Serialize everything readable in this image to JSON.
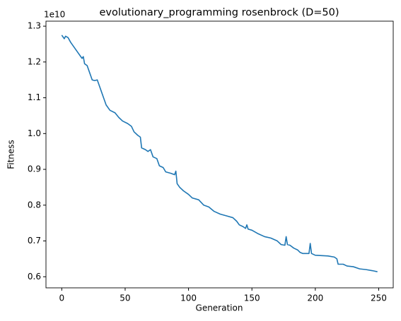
{
  "chart_data": {
    "type": "line",
    "title": "evolutionary_programming rosenbrock  (D=50)",
    "xlabel": "Generation",
    "ylabel": "Fitness",
    "y_offset_label": "1e10",
    "x": [
      0,
      2,
      3,
      5,
      7,
      10,
      13,
      15,
      16,
      17,
      18,
      20,
      22,
      24,
      26,
      28,
      29,
      31,
      33,
      35,
      38,
      42,
      45,
      48,
      52,
      55,
      57,
      60,
      62,
      63,
      66,
      68,
      70,
      72,
      75,
      77,
      80,
      82,
      86,
      89,
      90,
      91,
      93,
      96,
      100,
      103,
      108,
      112,
      116,
      120,
      125,
      130,
      135,
      138,
      140,
      143,
      145,
      146,
      147,
      150,
      155,
      160,
      165,
      170,
      173,
      176,
      177,
      178,
      180,
      183,
      186,
      188,
      190,
      195,
      196,
      197,
      200,
      210,
      215,
      217,
      218,
      222,
      225,
      230,
      235,
      240,
      245,
      249
    ],
    "series": [
      {
        "name": "Fitness",
        "color": "#1f77b4",
        "values": [
          1.275,
          1.265,
          1.272,
          1.268,
          1.255,
          1.24,
          1.225,
          1.215,
          1.21,
          1.215,
          1.195,
          1.19,
          1.17,
          1.15,
          1.148,
          1.15,
          1.14,
          1.12,
          1.1,
          1.08,
          1.065,
          1.058,
          1.045,
          1.035,
          1.028,
          1.02,
          1.005,
          0.995,
          0.99,
          0.96,
          0.955,
          0.95,
          0.955,
          0.935,
          0.93,
          0.91,
          0.905,
          0.893,
          0.889,
          0.885,
          0.895,
          0.86,
          0.85,
          0.84,
          0.83,
          0.82,
          0.815,
          0.8,
          0.795,
          0.783,
          0.775,
          0.77,
          0.765,
          0.755,
          0.745,
          0.74,
          0.735,
          0.745,
          0.733,
          0.73,
          0.72,
          0.712,
          0.708,
          0.7,
          0.69,
          0.688,
          0.712,
          0.69,
          0.688,
          0.68,
          0.675,
          0.668,
          0.665,
          0.665,
          0.693,
          0.665,
          0.66,
          0.658,
          0.655,
          0.65,
          0.635,
          0.635,
          0.63,
          0.628,
          0.622,
          0.62,
          0.617,
          0.614
        ]
      }
    ],
    "xlim": [
      -12.45,
      261.45
    ],
    "ylim": [
      0.569,
      1.314
    ],
    "xticks": [
      0,
      50,
      100,
      150,
      200,
      250
    ],
    "yticks": [
      {
        "value": 0.6,
        "label": "0.6"
      },
      {
        "value": 0.7,
        "label": "0.7"
      },
      {
        "value": 0.8,
        "label": "0.8"
      },
      {
        "value": 0.9,
        "label": "0.9"
      },
      {
        "value": 1.0,
        "label": "1.0"
      },
      {
        "value": 1.1,
        "label": "1.1"
      },
      {
        "value": 1.2,
        "label": "1.2"
      },
      {
        "value": 1.3,
        "label": "1.3"
      }
    ],
    "grid": false
  }
}
